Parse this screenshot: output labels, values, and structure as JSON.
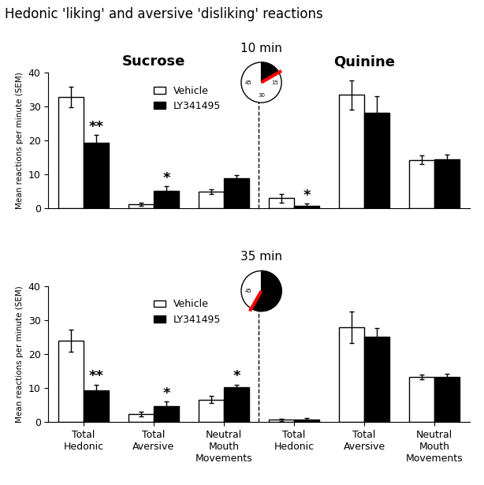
{
  "title": "Hedonic 'liking' and aversive 'disliking' reactions",
  "chart_data": [
    {
      "type": "bar",
      "clock_title": "10 min",
      "clock": {
        "minute": 10,
        "dial_labels": [
          15,
          30,
          45
        ]
      },
      "groups": [
        "Sucrose",
        "Quinine"
      ],
      "y_label": "Mean reactions per minute (SEM)",
      "categories": [
        null,
        null,
        null,
        null,
        null,
        null
      ],
      "ylim": [
        0,
        40
      ],
      "yticks": [
        0,
        10,
        20,
        30,
        40
      ],
      "legend": "upper center",
      "series": [
        {
          "name": "Vehicle",
          "color": "#ffffff",
          "values": [
            32.8,
            1.2,
            5.0,
            3.1,
            33.5,
            14.3
          ],
          "errors": [
            3.0,
            0.5,
            0.7,
            1.3,
            4.3,
            1.3
          ],
          "significance": [
            null,
            null,
            null,
            null,
            null,
            null
          ]
        },
        {
          "name": "LY341495",
          "color": "#000000",
          "values": [
            19.5,
            5.3,
            8.9,
            0.9,
            28.3,
            14.5
          ],
          "errors": [
            2.2,
            1.2,
            1.0,
            0.5,
            4.8,
            1.3
          ],
          "significance": [
            "**",
            "*",
            null,
            "*",
            null,
            null
          ]
        }
      ]
    },
    {
      "type": "bar",
      "clock_title": "35 min",
      "clock": {
        "minute": 35,
        "dial_labels": [
          45
        ]
      },
      "y_label": "Mean reactions per minute (SEM)",
      "categories": [
        "Total Hedonic",
        "Total Aversive",
        "Neutral Mouth Movements",
        "Total Hedonic",
        "Total Aversive",
        "Neutral Mouth Movements"
      ],
      "ylim": [
        0,
        40
      ],
      "yticks": [
        0,
        10,
        20,
        30,
        40
      ],
      "legend": "upper center",
      "series": [
        {
          "name": "Vehicle",
          "color": "#ffffff",
          "values": [
            23.9,
            2.3,
            6.6,
            0.6,
            27.9,
            13.3
          ],
          "errors": [
            3.3,
            0.7,
            1.1,
            0.3,
            4.7,
            0.7
          ],
          "significance": [
            null,
            null,
            null,
            null,
            null,
            null
          ]
        },
        {
          "name": "LY341495",
          "color": "#000000",
          "values": [
            9.2,
            4.6,
            10.3,
            0.7,
            25.0,
            13.3
          ],
          "errors": [
            1.8,
            1.4,
            0.7,
            0.4,
            2.6,
            0.8
          ],
          "significance": [
            "**",
            "*",
            "*",
            null,
            null,
            null
          ]
        }
      ]
    }
  ]
}
